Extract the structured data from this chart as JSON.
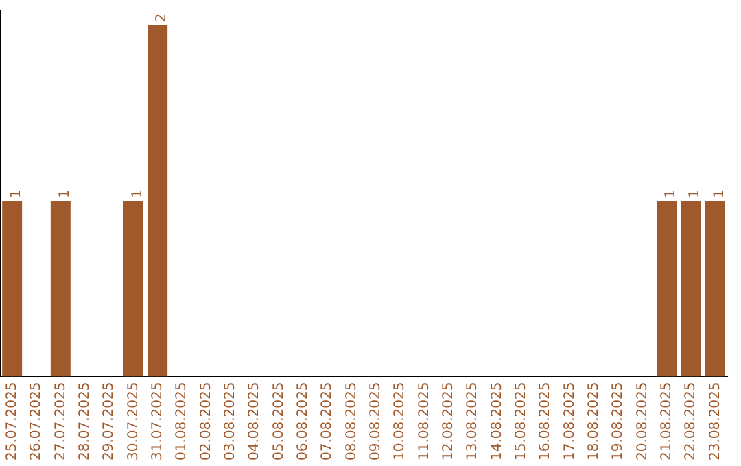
{
  "chart_data": {
    "type": "bar",
    "categories": [
      "25.07.2025",
      "26.07.2025",
      "27.07.2025",
      "28.07.2025",
      "29.07.2025",
      "30.07.2025",
      "31.07.2025",
      "01.08.2025",
      "02.08.2025",
      "03.08.2025",
      "04.08.2025",
      "05.08.2025",
      "06.08.2025",
      "07.08.2025",
      "08.08.2025",
      "09.08.2025",
      "10.08.2025",
      "11.08.2025",
      "12.08.2025",
      "13.08.2025",
      "14.08.2025",
      "15.08.2025",
      "16.08.2025",
      "17.08.2025",
      "18.08.2025",
      "19.08.2025",
      "20.08.2025",
      "21.08.2025",
      "22.08.2025",
      "23.08.2025"
    ],
    "values": [
      1,
      0,
      1,
      0,
      0,
      1,
      2,
      0,
      0,
      0,
      0,
      0,
      0,
      0,
      0,
      0,
      0,
      0,
      0,
      0,
      0,
      0,
      0,
      0,
      0,
      0,
      0,
      1,
      1,
      1
    ],
    "value_labels": [
      "1",
      null,
      "1",
      null,
      null,
      "1",
      "2",
      null,
      null,
      null,
      null,
      null,
      null,
      null,
      null,
      null,
      null,
      null,
      null,
      null,
      null,
      null,
      null,
      null,
      null,
      null,
      null,
      "1",
      "1",
      "1"
    ],
    "color": "#a0592b",
    "ylim": [
      0,
      2.08
    ],
    "tick_labels": "x",
    "grid": false,
    "legend": false
  }
}
